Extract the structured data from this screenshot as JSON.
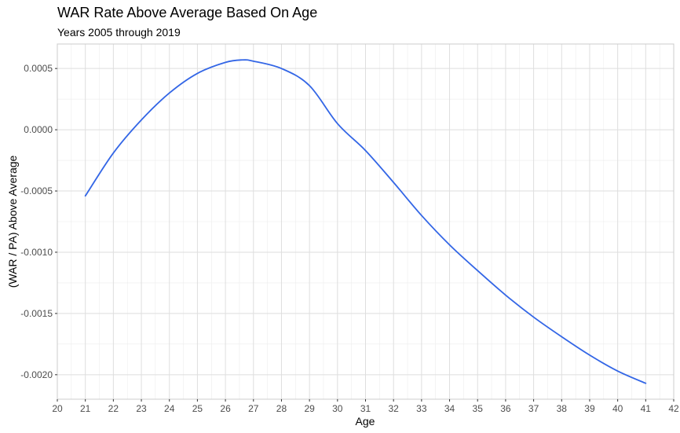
{
  "chart_data": {
    "type": "line",
    "title": "WAR Rate Above Average Based On Age",
    "subtitle": "Years 2005 through 2019",
    "xlabel": "Age",
    "ylabel": "(WAR / PA) Above Average",
    "xlim": [
      20,
      42
    ],
    "ylim": [
      -0.0022,
      0.0007
    ],
    "x_ticks": [
      "20",
      "21",
      "22",
      "23",
      "24",
      "25",
      "26",
      "27",
      "28",
      "29",
      "30",
      "31",
      "32",
      "33",
      "34",
      "35",
      "36",
      "37",
      "38",
      "39",
      "40",
      "41",
      "42"
    ],
    "y_ticks": [
      {
        "value": 0.0005,
        "label": "0.0005"
      },
      {
        "value": 0.0,
        "label": "0.0000"
      },
      {
        "value": -0.0005,
        "label": "-0.0005"
      },
      {
        "value": -0.001,
        "label": "-0.0010"
      },
      {
        "value": -0.0015,
        "label": "-0.0015"
      },
      {
        "value": -0.002,
        "label": "-0.0020"
      }
    ],
    "grid": true,
    "series": [
      {
        "color": "#3366e6",
        "x": [
          21,
          22,
          23,
          24,
          25,
          26,
          26.6,
          27,
          28,
          29,
          30,
          31,
          32,
          33,
          34,
          35,
          36,
          37,
          38,
          39,
          40,
          41
        ],
        "y": [
          -0.00054,
          -0.00019,
          8e-05,
          0.0003,
          0.00046,
          0.00055,
          0.00057,
          0.00056,
          0.0005,
          0.00036,
          5e-05,
          -0.00017,
          -0.00043,
          -0.0007,
          -0.00094,
          -0.00115,
          -0.00135,
          -0.00153,
          -0.00169,
          -0.00184,
          -0.00197,
          -0.00207
        ]
      }
    ]
  }
}
